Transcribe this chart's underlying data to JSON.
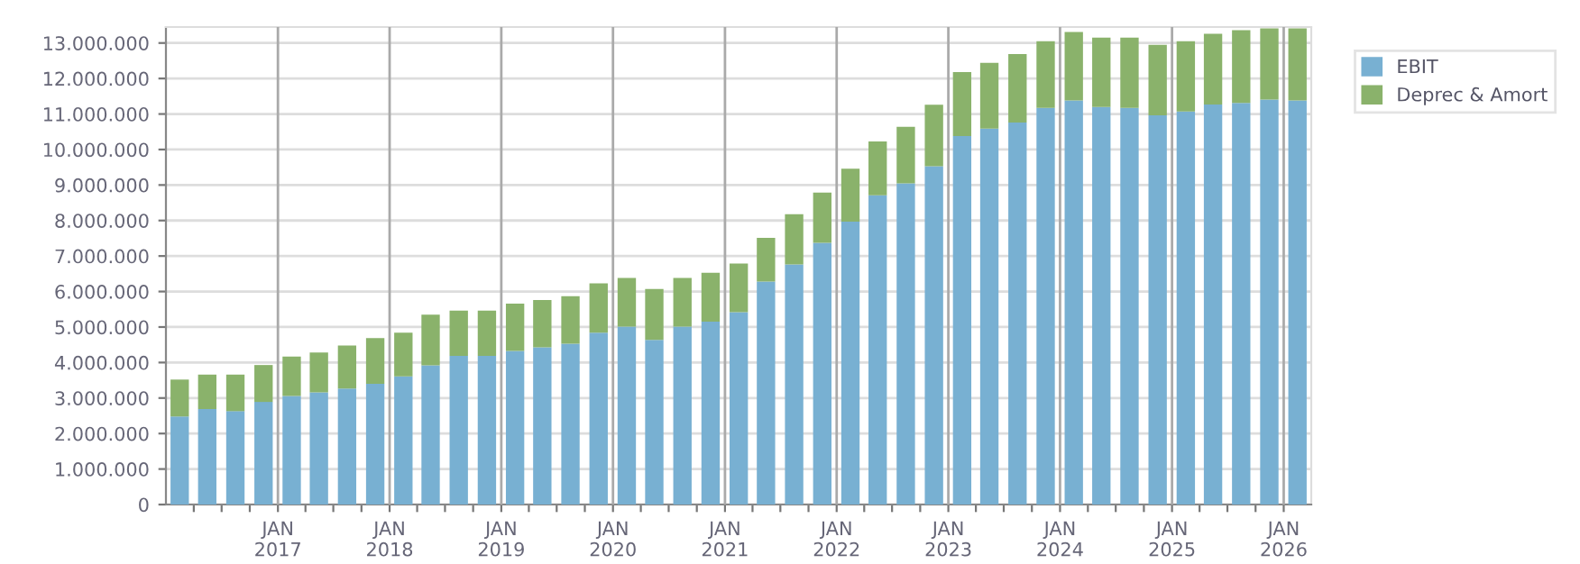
{
  "chart_data": {
    "type": "bar",
    "stacked": true,
    "x": [
      "2016-02-15",
      "2016-05-15",
      "2016-08-15",
      "2016-11-15",
      "2017-02-15",
      "2017-05-15",
      "2017-08-15",
      "2017-11-15",
      "2018-02-15",
      "2018-05-15",
      "2018-08-15",
      "2018-11-15",
      "2019-02-15",
      "2019-05-15",
      "2019-08-15",
      "2019-11-15",
      "2020-02-15",
      "2020-05-15",
      "2020-08-15",
      "2020-11-15",
      "2021-02-15",
      "2021-05-15",
      "2021-08-15",
      "2021-11-15",
      "2022-02-15",
      "2022-05-15",
      "2022-08-15",
      "2022-11-15",
      "2023-02-15",
      "2023-05-15",
      "2023-08-15",
      "2023-11-15",
      "2024-02-15",
      "2024-05-15",
      "2024-08-15",
      "2024-11-15",
      "2025-02-15",
      "2025-05-15",
      "2025-08-15",
      "2025-11-15",
      "2026-02-15"
    ],
    "series": [
      {
        "name": "EBIT",
        "color": "#78b0d2",
        "values": [
          2480000,
          2690000,
          2630000,
          2890000,
          3060000,
          3160000,
          3270000,
          3400000,
          3610000,
          3920000,
          4190000,
          4190000,
          4330000,
          4430000,
          4530000,
          4840000,
          5010000,
          4640000,
          5010000,
          5150000,
          5420000,
          6280000,
          6760000,
          7370000,
          7970000,
          8710000,
          9050000,
          9530000,
          10380000,
          10590000,
          10760000,
          11170000,
          11380000,
          11200000,
          11170000,
          10960000,
          11070000,
          11270000,
          11310000,
          11410000,
          11380000
        ]
      },
      {
        "name": "Deprec & Amort",
        "color": "#8ab26b",
        "values": [
          1040000,
          970000,
          1030000,
          1040000,
          1110000,
          1120000,
          1210000,
          1290000,
          1230000,
          1430000,
          1270000,
          1270000,
          1330000,
          1330000,
          1340000,
          1390000,
          1370000,
          1430000,
          1370000,
          1380000,
          1370000,
          1230000,
          1420000,
          1420000,
          1490000,
          1520000,
          1590000,
          1730000,
          1800000,
          1850000,
          1930000,
          1880000,
          1930000,
          1950000,
          1980000,
          1990000,
          1980000,
          1990000,
          2050000,
          2000000,
          2030000
        ]
      }
    ],
    "xlim": [
      "2016-01-01",
      "2026-04-01"
    ],
    "xticks": [
      {
        "value": "2016-04-01",
        "label": null
      },
      {
        "value": "2016-07-01",
        "label": null
      },
      {
        "value": "2016-10-01",
        "label": null
      },
      {
        "value": "2017-01-01",
        "label": "JAN\n2017"
      },
      {
        "value": "2017-04-01",
        "label": null
      },
      {
        "value": "2017-07-01",
        "label": null
      },
      {
        "value": "2017-10-01",
        "label": null
      },
      {
        "value": "2018-01-01",
        "label": "JAN\n2018"
      },
      {
        "value": "2018-04-01",
        "label": null
      },
      {
        "value": "2018-07-01",
        "label": null
      },
      {
        "value": "2018-10-01",
        "label": null
      },
      {
        "value": "2019-01-01",
        "label": "JAN\n2019"
      },
      {
        "value": "2019-04-01",
        "label": null
      },
      {
        "value": "2019-07-01",
        "label": null
      },
      {
        "value": "2019-10-01",
        "label": null
      },
      {
        "value": "2020-01-01",
        "label": "JAN\n2020"
      },
      {
        "value": "2020-04-01",
        "label": null
      },
      {
        "value": "2020-07-01",
        "label": null
      },
      {
        "value": "2020-10-01",
        "label": null
      },
      {
        "value": "2021-01-01",
        "label": "JAN\n2021"
      },
      {
        "value": "2021-04-01",
        "label": null
      },
      {
        "value": "2021-07-01",
        "label": null
      },
      {
        "value": "2021-10-01",
        "label": null
      },
      {
        "value": "2022-01-01",
        "label": "JAN\n2022"
      },
      {
        "value": "2022-04-01",
        "label": null
      },
      {
        "value": "2022-07-01",
        "label": null
      },
      {
        "value": "2022-10-01",
        "label": null
      },
      {
        "value": "2023-01-01",
        "label": "JAN\n2023"
      },
      {
        "value": "2023-04-01",
        "label": null
      },
      {
        "value": "2023-07-01",
        "label": null
      },
      {
        "value": "2023-10-01",
        "label": null
      },
      {
        "value": "2024-01-01",
        "label": "JAN\n2024"
      },
      {
        "value": "2024-04-01",
        "label": null
      },
      {
        "value": "2024-07-01",
        "label": null
      },
      {
        "value": "2024-10-01",
        "label": null
      },
      {
        "value": "2025-01-01",
        "label": "JAN\n2025"
      },
      {
        "value": "2025-04-01",
        "label": null
      },
      {
        "value": "2025-07-01",
        "label": null
      },
      {
        "value": "2025-10-01",
        "label": null
      },
      {
        "value": "2026-01-01",
        "label": "JAN\n2026"
      }
    ],
    "ylim": [
      0,
      13450000
    ],
    "yticks": [
      0,
      {
        "value": 1000000,
        "label": "1.000.000"
      },
      {
        "value": 2000000,
        "label": "2.000.000"
      },
      {
        "value": 3000000,
        "label": "3.000.000"
      },
      {
        "value": 4000000,
        "label": "4.000.000"
      },
      {
        "value": 5000000,
        "label": "5.000.000"
      },
      {
        "value": 6000000,
        "label": "6.000.000"
      },
      {
        "value": 7000000,
        "label": "7.000.000"
      },
      {
        "value": 8000000,
        "label": "8.000.000"
      },
      {
        "value": 9000000,
        "label": "9.000.000"
      },
      {
        "value": 10000000,
        "label": "10.000.000"
      },
      {
        "value": 11000000,
        "label": "11.000.000"
      },
      {
        "value": 12000000,
        "label": "12.000.000"
      },
      {
        "value": 13000000,
        "label": "13.000.000"
      }
    ],
    "grid": true,
    "legend": "top right"
  }
}
